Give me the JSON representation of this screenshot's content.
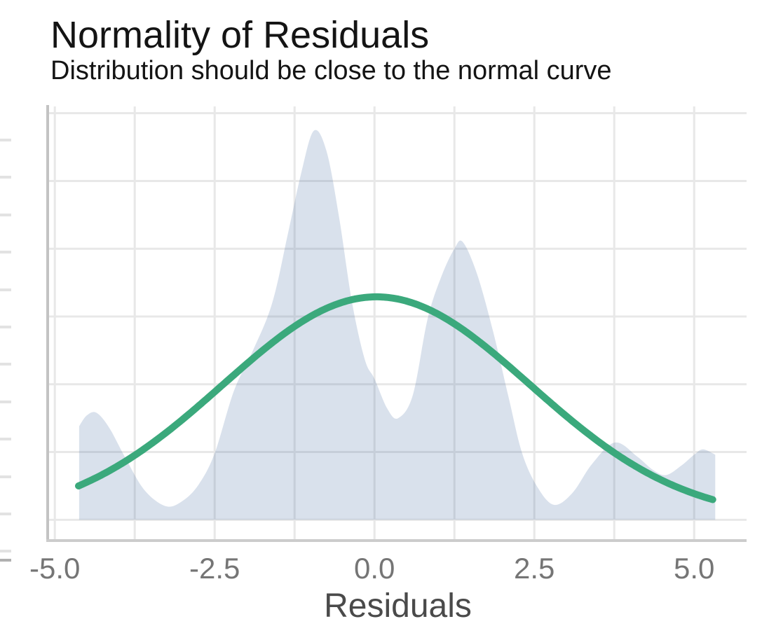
{
  "chart_data": {
    "type": "area",
    "title": "Normality of Residuals",
    "subtitle": "Distribution should be close to the normal curve",
    "xlabel": "Residuals",
    "ylabel": "",
    "grid": true,
    "legend": "none",
    "xlim": [
      -5.09,
      5.82
    ],
    "ylim": [
      -0.0143,
      0.305
    ],
    "x_gridlines": [
      -5,
      -3.75,
      -2.5,
      -1.25,
      0,
      1.25,
      2.5,
      3.75,
      5
    ],
    "y_gridlines": [
      0,
      0.05,
      0.1,
      0.15,
      0.2,
      0.25,
      0.3
    ],
    "x_ticks": {
      "values": [
        -5.0,
        -2.5,
        0.0,
        2.5,
        5.0
      ],
      "labels": [
        "-5.0",
        "-2.5",
        "0.0",
        "2.5",
        "5.0"
      ]
    },
    "series": [
      {
        "name": "residual-density",
        "type": "area",
        "fill": "#4169a0",
        "fill_opacity": 0.2,
        "points": [
          [
            -4.62,
            0.069
          ],
          [
            -4.5,
            0.077
          ],
          [
            -4.35,
            0.079
          ],
          [
            -4.15,
            0.068
          ],
          [
            -3.9,
            0.046
          ],
          [
            -3.6,
            0.022
          ],
          [
            -3.26,
            0.01
          ],
          [
            -3.0,
            0.014
          ],
          [
            -2.75,
            0.026
          ],
          [
            -2.5,
            0.049
          ],
          [
            -2.2,
            0.095
          ],
          [
            -1.9,
            0.125
          ],
          [
            -1.6,
            0.16
          ],
          [
            -1.35,
            0.212
          ],
          [
            -1.15,
            0.255
          ],
          [
            -0.95,
            0.287
          ],
          [
            -0.75,
            0.272
          ],
          [
            -0.55,
            0.222
          ],
          [
            -0.35,
            0.16
          ],
          [
            -0.15,
            0.118
          ],
          [
            0.0,
            0.104
          ],
          [
            0.2,
            0.082
          ],
          [
            0.37,
            0.075
          ],
          [
            0.6,
            0.092
          ],
          [
            0.83,
            0.148
          ],
          [
            1.05,
            0.18
          ],
          [
            1.25,
            0.2
          ],
          [
            1.38,
            0.205
          ],
          [
            1.6,
            0.182
          ],
          [
            1.85,
            0.14
          ],
          [
            2.1,
            0.09
          ],
          [
            2.31,
            0.049
          ],
          [
            2.55,
            0.024
          ],
          [
            2.81,
            0.011
          ],
          [
            3.1,
            0.02
          ],
          [
            3.4,
            0.041
          ],
          [
            3.76,
            0.057
          ],
          [
            4.1,
            0.047
          ],
          [
            4.35,
            0.037
          ],
          [
            4.56,
            0.033
          ],
          [
            4.8,
            0.04
          ],
          [
            5.0,
            0.048
          ],
          [
            5.14,
            0.052
          ],
          [
            5.33,
            0.048
          ]
        ]
      },
      {
        "name": "normal-reference-curve",
        "type": "line",
        "stroke": "#3ba97c",
        "stroke_width": 10,
        "gaussian": {
          "mu": 0.03,
          "sigma": 2.4,
          "peak": 0.1645,
          "x_start": -4.63,
          "x_end": 5.3
        }
      }
    ]
  },
  "style": {
    "grid_color": "#e8e8e8",
    "axis_line_color_left": "#c3c3c3",
    "axis_line_color_bottom": "#cccccc",
    "tick_label_color": "#757575",
    "axis_title_color": "#4a4a4a"
  },
  "decorations": {
    "left_edge_ticks": {
      "light_ys": [
        200,
        253,
        307,
        360,
        414,
        467,
        520,
        574,
        627,
        681,
        734,
        787
      ],
      "dark_ys": [
        800
      ],
      "light_color": "#e2e2e2",
      "dark_color": "#b0b0b0",
      "length": 16,
      "thickness": 4
    }
  }
}
